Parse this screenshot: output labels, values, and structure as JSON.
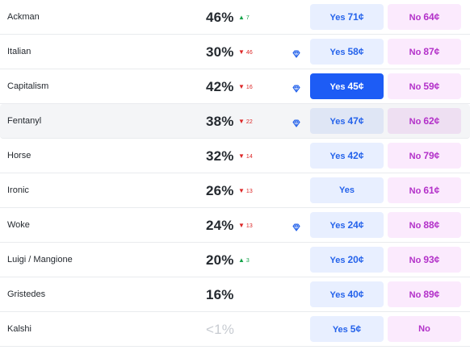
{
  "markets": [
    {
      "name": "Ackman",
      "pct": "46%",
      "delta_dir": "up",
      "delta": "7",
      "gem": false,
      "yes": "Yes",
      "yes_price": "71¢",
      "no": "No",
      "no_price": "64¢"
    },
    {
      "name": "Italian",
      "pct": "30%",
      "delta_dir": "down",
      "delta": "46",
      "gem": true,
      "yes": "Yes",
      "yes_price": "58¢",
      "no": "No",
      "no_price": "87¢"
    },
    {
      "name": "Capitalism",
      "pct": "42%",
      "delta_dir": "down",
      "delta": "16",
      "gem": true,
      "yes": "Yes",
      "yes_price": "45¢",
      "no": "No",
      "no_price": "59¢",
      "yes_active": true
    },
    {
      "name": "Fentanyl",
      "pct": "38%",
      "delta_dir": "down",
      "delta": "22",
      "gem": true,
      "yes": "Yes",
      "yes_price": "47¢",
      "no": "No",
      "no_price": "62¢",
      "hover": true
    },
    {
      "name": "Horse",
      "pct": "32%",
      "delta_dir": "down",
      "delta": "14",
      "gem": false,
      "yes": "Yes",
      "yes_price": "42¢",
      "no": "No",
      "no_price": "79¢"
    },
    {
      "name": "Ironic",
      "pct": "26%",
      "delta_dir": "down",
      "delta": "13",
      "gem": false,
      "yes": "Yes",
      "yes_price": "",
      "no": "No",
      "no_price": "61¢"
    },
    {
      "name": "Woke",
      "pct": "24%",
      "delta_dir": "down",
      "delta": "13",
      "gem": true,
      "yes": "Yes",
      "yes_price": "24¢",
      "no": "No",
      "no_price": "88¢"
    },
    {
      "name": "Luigi / Mangione",
      "pct": "20%",
      "delta_dir": "up",
      "delta": "3",
      "gem": false,
      "yes": "Yes",
      "yes_price": "20¢",
      "no": "No",
      "no_price": "93¢"
    },
    {
      "name": "Gristedes",
      "pct": "16%",
      "delta_dir": "",
      "delta": "",
      "gem": false,
      "yes": "Yes",
      "yes_price": "40¢",
      "no": "No",
      "no_price": "89¢"
    },
    {
      "name": "Kalshi",
      "pct": "<1%",
      "pct_muted": true,
      "delta_dir": "",
      "delta": "",
      "gem": false,
      "yes": "Yes",
      "yes_price": "5¢",
      "no": "No",
      "no_price": ""
    }
  ],
  "icons": {
    "up": "triangle-up-icon",
    "down": "triangle-down-icon",
    "gem": "diamond-icon"
  },
  "colors": {
    "accent_blue": "#1d5cf5",
    "yes_bg": "#e8efff",
    "no_bg": "#fbeafd",
    "no_text": "#b331c9",
    "up": "#16a34a",
    "down": "#dc2626"
  }
}
